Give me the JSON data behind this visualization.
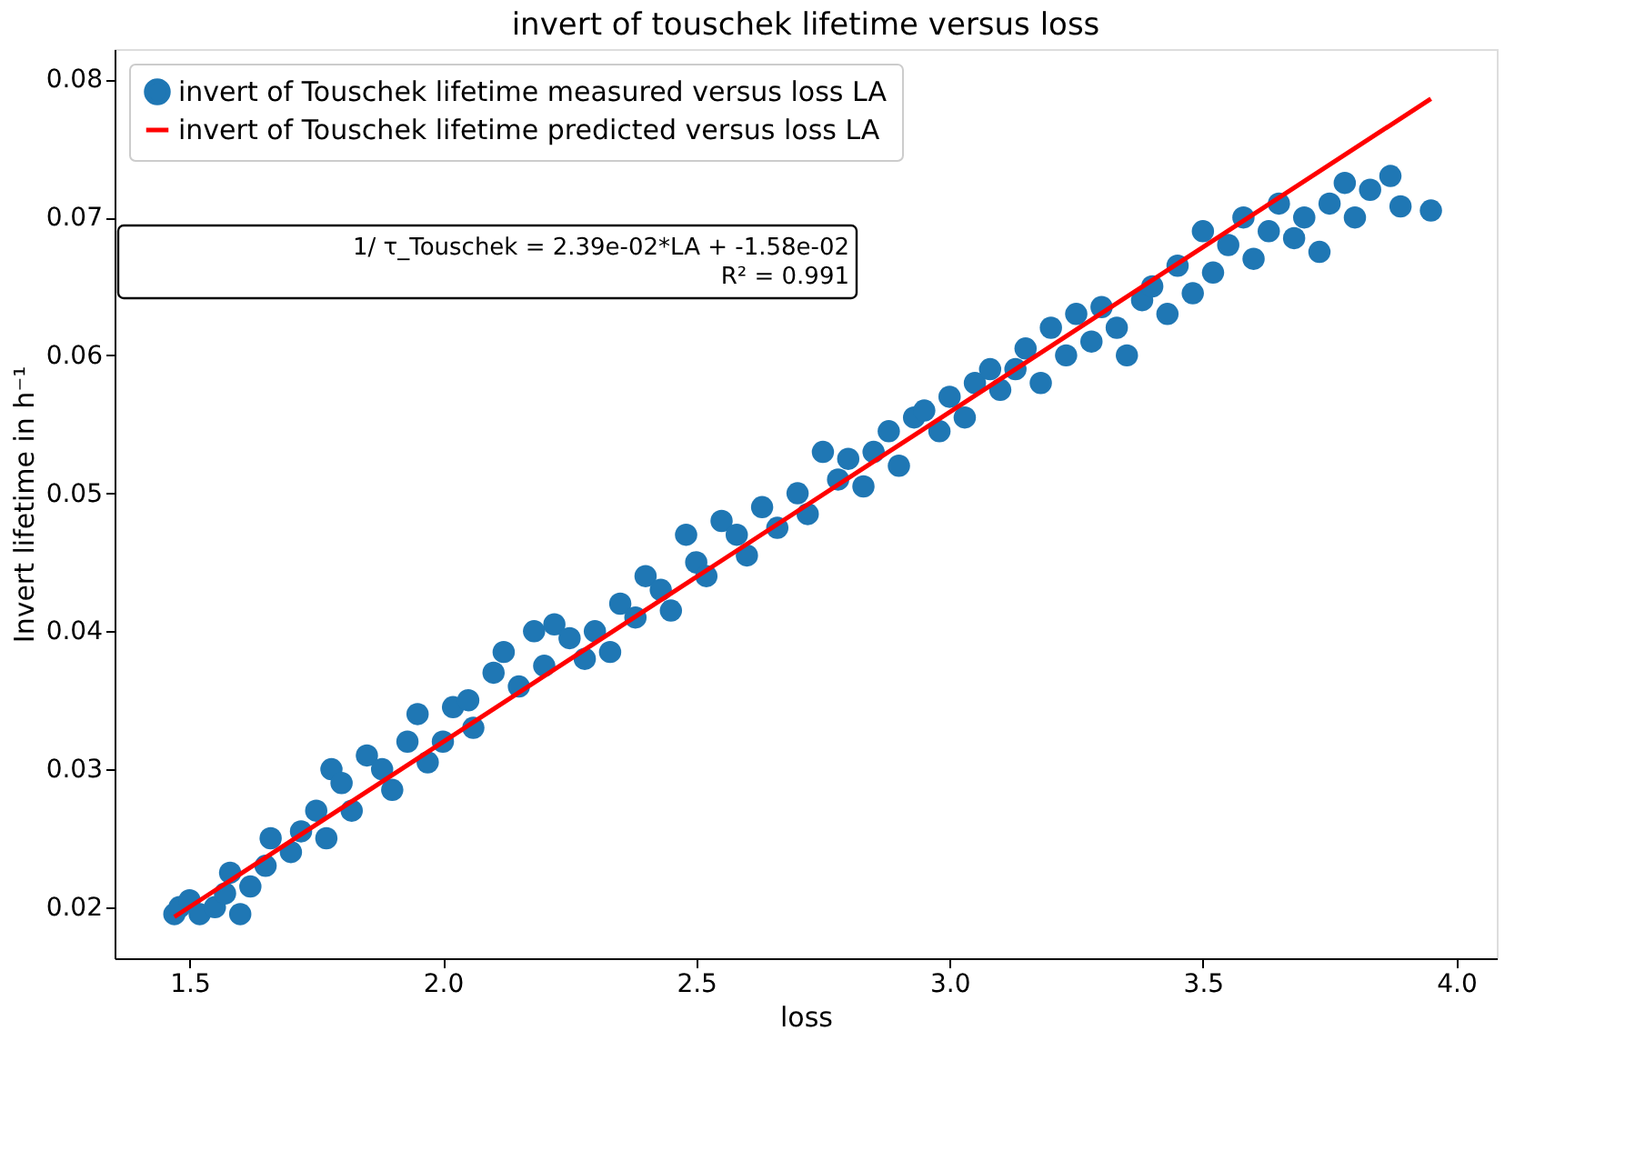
{
  "chart_data": {
    "type": "scatter",
    "title": "invert of touschek lifetime versus loss",
    "xlabel": "loss",
    "ylabel": "Invert lifetime in h⁻¹",
    "xlim": [
      1.352,
      4.08
    ],
    "ylim": [
      0.0163,
      0.0822
    ],
    "xticks": [
      1.5,
      {
        "value": 2,
        "label": "2.0"
      },
      2.5,
      {
        "value": 3,
        "label": "3.0"
      },
      3.5,
      {
        "value": 4,
        "label": "4.0"
      }
    ],
    "yticks": [
      0.02,
      0.03,
      0.04,
      0.05,
      0.06,
      0.07,
      0.08
    ],
    "grid": false,
    "legend": "top left",
    "annotations": [
      "1/ τ_Touschek = 2.39e-02*LA + -1.58e-02",
      "R² = 0.991"
    ],
    "series": [
      {
        "name": "invert of Touschek lifetime measured versus loss LA",
        "marker": "circle",
        "color": "#1f77b4",
        "x": [
          1.47,
          1.48,
          1.5,
          1.52,
          1.55,
          1.57,
          1.6,
          1.58,
          1.62,
          1.65,
          1.66,
          1.7,
          1.72,
          1.75,
          1.77,
          1.78,
          1.8,
          1.82,
          1.85,
          1.88,
          1.9,
          1.93,
          1.95,
          1.97,
          2.0,
          2.02,
          2.05,
          2.06,
          2.1,
          2.12,
          2.15,
          2.18,
          2.2,
          2.22,
          2.25,
          2.28,
          2.3,
          2.33,
          2.35,
          2.38,
          2.4,
          2.43,
          2.45,
          2.48,
          2.5,
          2.52,
          2.55,
          2.58,
          2.6,
          2.63,
          2.66,
          2.7,
          2.72,
          2.75,
          2.78,
          2.8,
          2.83,
          2.85,
          2.88,
          2.9,
          2.93,
          2.95,
          2.98,
          3.0,
          3.03,
          3.05,
          3.08,
          3.1,
          3.13,
          3.15,
          3.18,
          3.2,
          3.23,
          3.25,
          3.28,
          3.3,
          3.33,
          3.35,
          3.38,
          3.4,
          3.43,
          3.45,
          3.48,
          3.5,
          3.52,
          3.55,
          3.58,
          3.6,
          3.63,
          3.65,
          3.68,
          3.7,
          3.73,
          3.75,
          3.78,
          3.8,
          3.83,
          3.87,
          3.89,
          3.95
        ],
        "values": [
          0.0195,
          0.02,
          0.0205,
          0.0195,
          0.02,
          0.021,
          0.0195,
          0.0225,
          0.0215,
          0.023,
          0.025,
          0.024,
          0.0255,
          0.027,
          0.025,
          0.03,
          0.029,
          0.027,
          0.031,
          0.03,
          0.0285,
          0.032,
          0.034,
          0.0305,
          0.032,
          0.0345,
          0.035,
          0.033,
          0.037,
          0.0385,
          0.036,
          0.04,
          0.0375,
          0.0405,
          0.0395,
          0.038,
          0.04,
          0.0385,
          0.042,
          0.041,
          0.044,
          0.043,
          0.0415,
          0.047,
          0.045,
          0.044,
          0.048,
          0.047,
          0.0455,
          0.049,
          0.0475,
          0.05,
          0.0485,
          0.053,
          0.051,
          0.0525,
          0.0505,
          0.053,
          0.0545,
          0.052,
          0.0555,
          0.056,
          0.0545,
          0.057,
          0.0555,
          0.058,
          0.059,
          0.0575,
          0.059,
          0.0605,
          0.058,
          0.062,
          0.06,
          0.063,
          0.061,
          0.0635,
          0.062,
          0.06,
          0.064,
          0.065,
          0.063,
          0.0665,
          0.0645,
          0.069,
          0.066,
          0.068,
          0.07,
          0.067,
          0.069,
          0.071,
          0.0685,
          0.07,
          0.0675,
          0.071,
          0.0725,
          0.07,
          0.072,
          0.073,
          0.0708,
          0.0705
        ]
      },
      {
        "name": "invert of Touschek lifetime predicted versus loss LA",
        "type": "line",
        "color": "#ff0000",
        "x": [
          1.47,
          3.95
        ],
        "values": [
          0.0193,
          0.0786
        ]
      }
    ]
  }
}
